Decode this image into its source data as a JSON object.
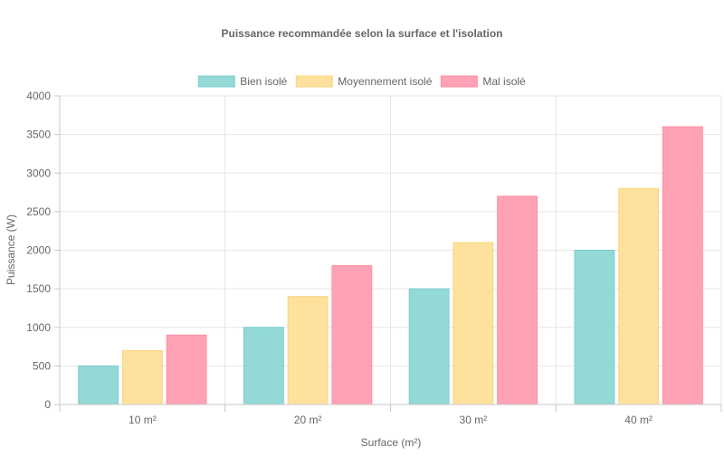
{
  "chart_data": {
    "type": "bar",
    "title": "Puissance recommandée selon la surface et l'isolation",
    "xlabel": "Surface (m²)",
    "ylabel": "Puissance (W)",
    "categories": [
      "10 m²",
      "20 m²",
      "30 m²",
      "40 m²"
    ],
    "ylim": [
      0,
      4000
    ],
    "yticks": [
      "0",
      "500",
      "1000",
      "1500",
      "2000",
      "2500",
      "3000",
      "3500",
      "4000"
    ],
    "grid": true,
    "legend_position": "top-center",
    "series": [
      {
        "name": "Bien isolé",
        "values": [
          500,
          1000,
          1500,
          2000
        ],
        "fill": "#93d9d6",
        "stroke": "#7ccfcb"
      },
      {
        "name": "Moyennement isolé",
        "values": [
          700,
          1400,
          2100,
          2800
        ],
        "fill": "#fde19c",
        "stroke": "#f9d67f"
      },
      {
        "name": "Mal isolé",
        "values": [
          900,
          1800,
          2700,
          3600
        ],
        "fill": "#ffa2b5",
        "stroke": "#ff8ea4"
      }
    ]
  }
}
